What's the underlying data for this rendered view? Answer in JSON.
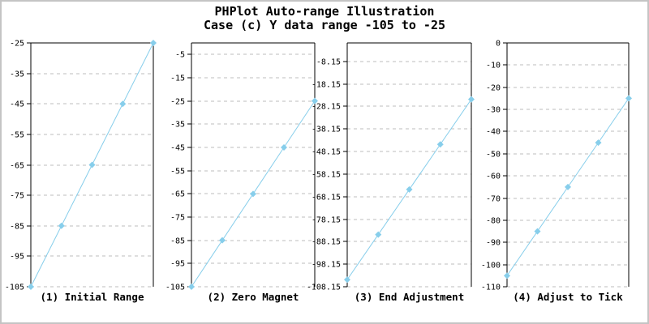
{
  "title": {
    "line1": "PHPlot Auto-range Illustration",
    "line2": "Case (c) Y data range -105 to -25"
  },
  "colors": {
    "series": "#87CEEB",
    "grid": "#bdbdbd",
    "axis": "#000000",
    "text": "#000000",
    "image_border": "#c4c4c4",
    "background": "#ffffff"
  },
  "chart_data": [
    {
      "type": "line",
      "title": "(1) Initial Range",
      "x": [
        1,
        2,
        3,
        4,
        5
      ],
      "values": [
        -105,
        -85,
        -65,
        -45,
        -25
      ],
      "ylim": [
        -25,
        -105
      ],
      "ytick_values": [
        -25,
        -35,
        -45,
        -55,
        -65,
        -75,
        -85,
        -95,
        -105
      ],
      "ytick_labels": [
        "-25",
        "-35",
        "-45",
        "-55",
        "-65",
        "-75",
        "-85",
        "-95",
        "-105"
      ],
      "grid": "horizontal-dashed",
      "marker": "diamond",
      "legend": "none"
    },
    {
      "type": "line",
      "title": "(2) Zero Magnet",
      "x": [
        1,
        2,
        3,
        4,
        5
      ],
      "values": [
        -105,
        -85,
        -65,
        -45,
        -25
      ],
      "ylim": [
        0,
        -105
      ],
      "ytick_values": [
        -5,
        -15,
        -25,
        -35,
        -45,
        -55,
        -65,
        -75,
        -85,
        -95,
        -105
      ],
      "ytick_labels": [
        "-5",
        "-15",
        "-25",
        "-35",
        "-45",
        "-55",
        "-65",
        "-75",
        "-85",
        "-95",
        "-105"
      ],
      "grid": "horizontal-dashed",
      "marker": "diamond",
      "legend": "none"
    },
    {
      "type": "line",
      "title": "(3) End Adjustment",
      "x": [
        1,
        2,
        3,
        4,
        5
      ],
      "values": [
        -105,
        -85,
        -65,
        -45,
        -25
      ],
      "ylim": [
        0,
        -108.15
      ],
      "ytick_values": [
        -8.15,
        -18.15,
        -28.15,
        -38.15,
        -48.15,
        -58.15,
        -68.15,
        -78.15,
        -88.15,
        -98.15,
        -108.15
      ],
      "ytick_labels": [
        "-8.15",
        "-18.15",
        "-28.15",
        "-38.15",
        "-48.15",
        "-58.15",
        "-68.15",
        "-78.15",
        "-88.15",
        "-98.15",
        "-108.15"
      ],
      "grid": "horizontal-dashed",
      "marker": "diamond",
      "legend": "none"
    },
    {
      "type": "line",
      "title": "(4) Adjust to Tick",
      "x": [
        1,
        2,
        3,
        4,
        5
      ],
      "values": [
        -105,
        -85,
        -65,
        -45,
        -25
      ],
      "ylim": [
        0,
        -110
      ],
      "ytick_values": [
        0,
        -10,
        -20,
        -30,
        -40,
        -50,
        -60,
        -70,
        -80,
        -90,
        -100,
        -110
      ],
      "ytick_labels": [
        "0",
        "-10",
        "-20",
        "-30",
        "-40",
        "-50",
        "-60",
        "-70",
        "-80",
        "-90",
        "-100",
        "-110"
      ],
      "grid": "horizontal-dashed",
      "marker": "diamond",
      "legend": "none"
    }
  ]
}
